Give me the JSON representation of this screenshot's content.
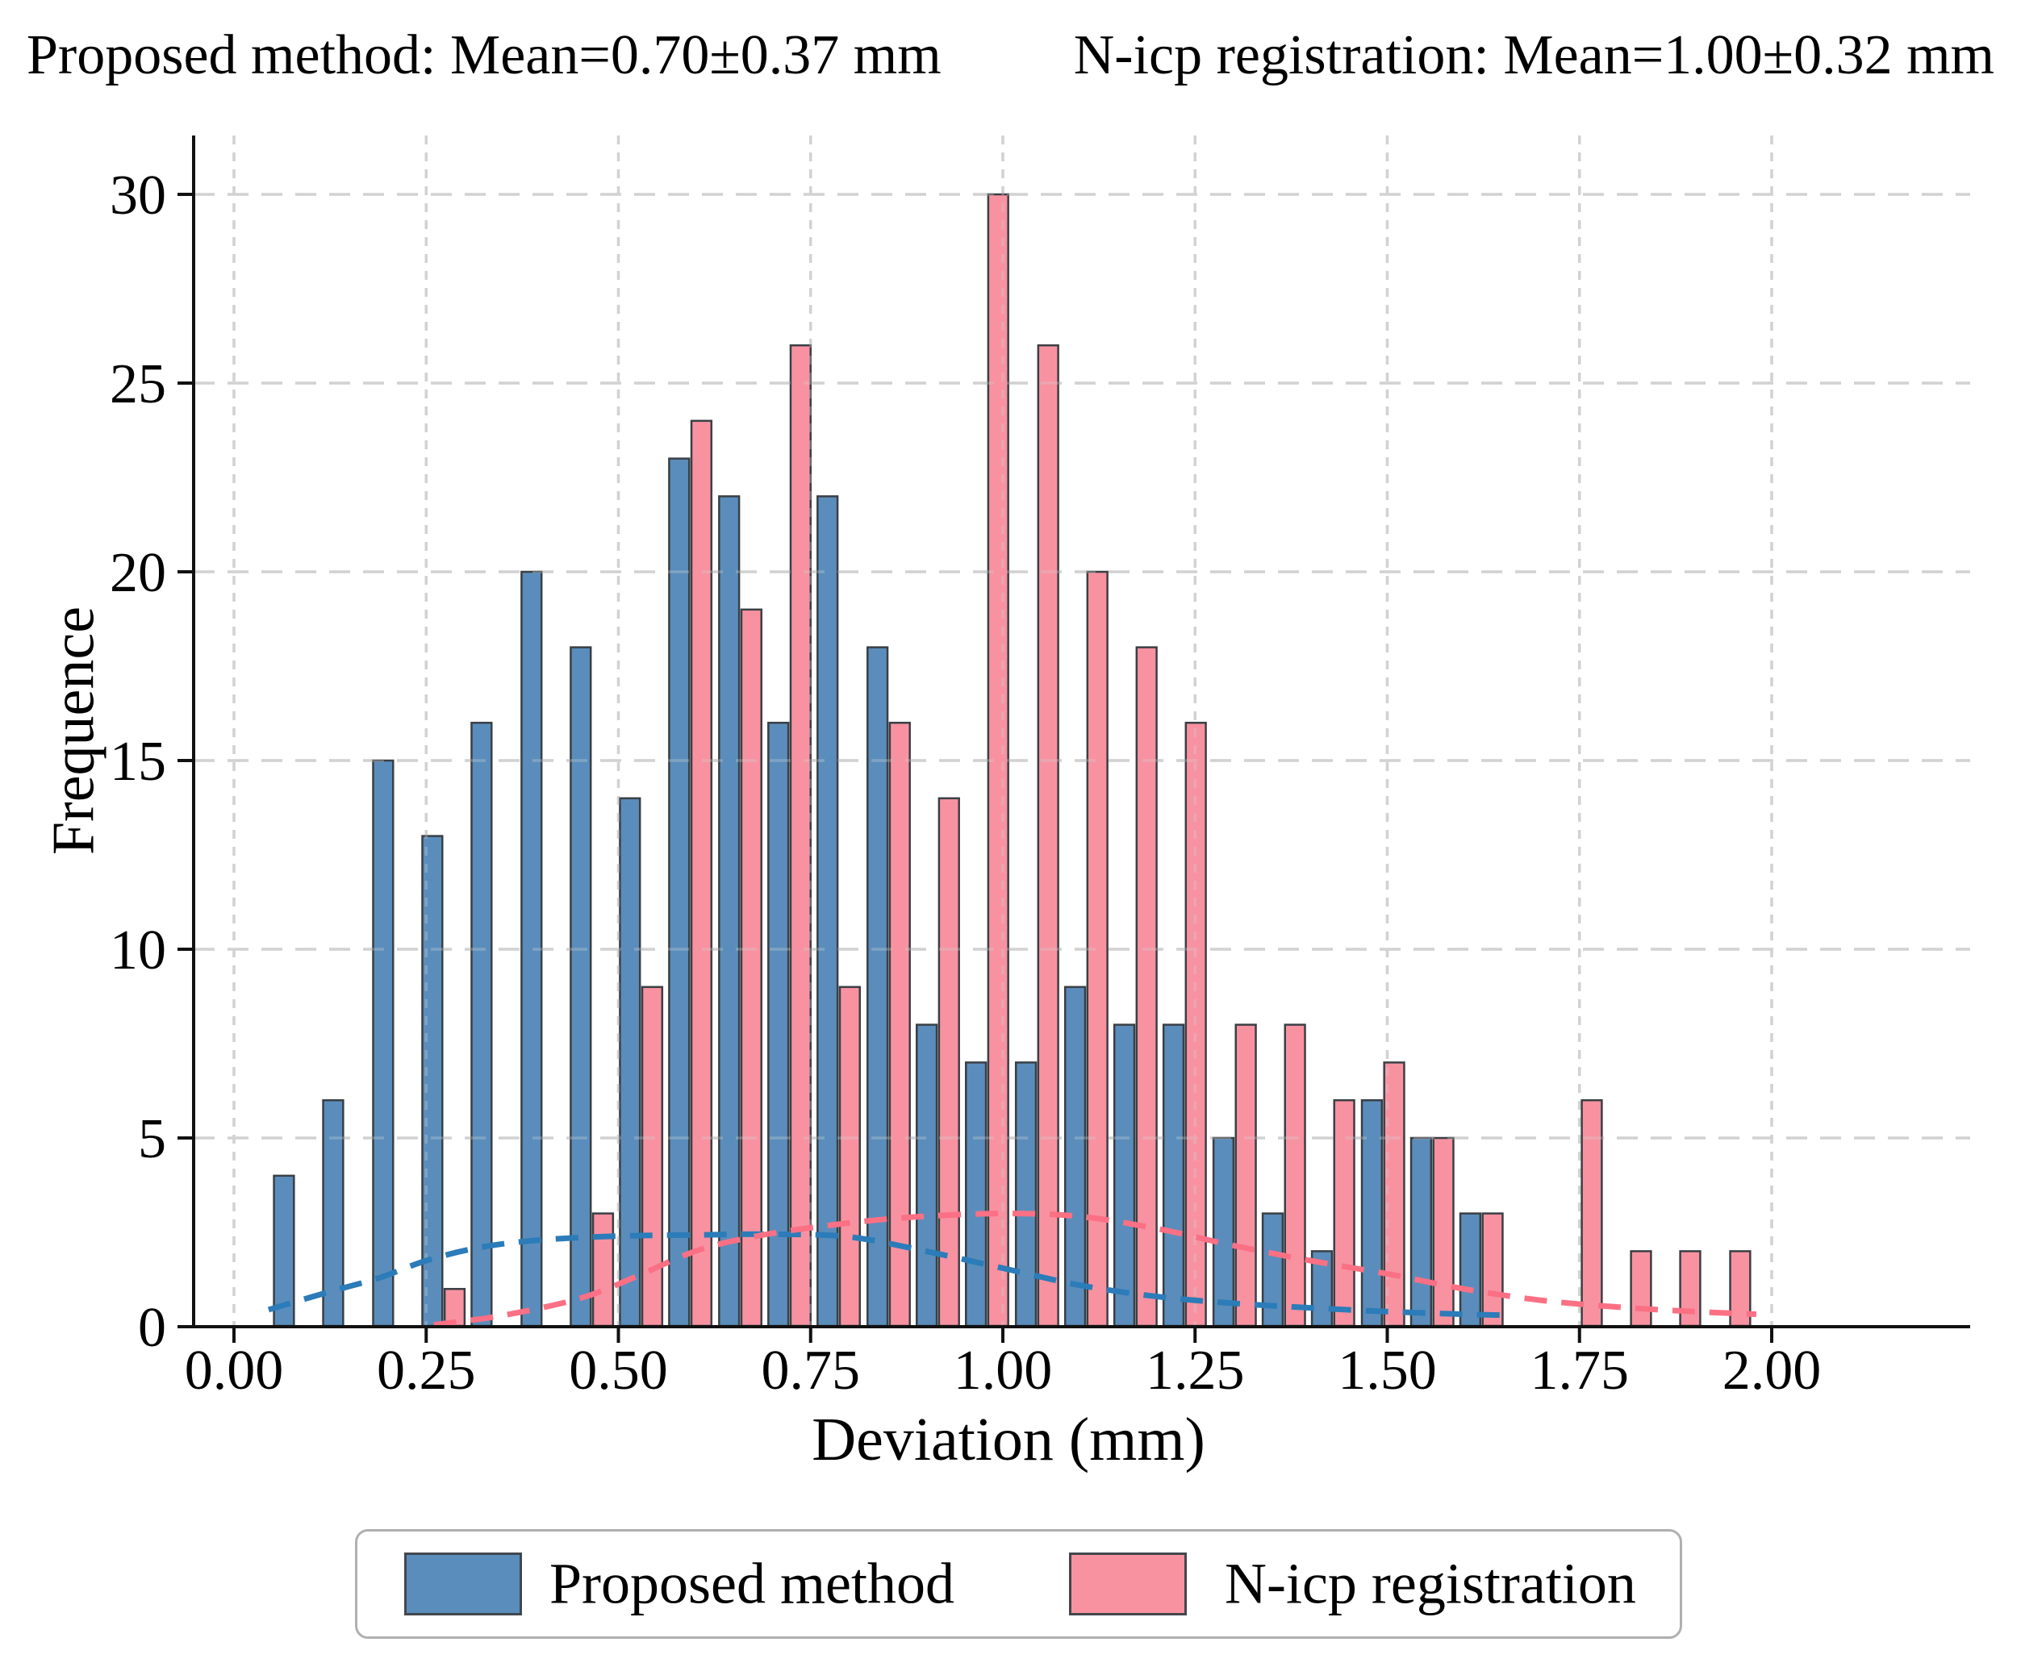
{
  "titles": {
    "left": "Proposed method: Mean=0.70±0.37 mm",
    "right": "N-icp registration: Mean=1.00±0.32 mm"
  },
  "chart_data": {
    "type": "bar",
    "subtype": "grouped-histogram-with-kde",
    "xlabel": "Deviation (mm)",
    "ylabel": "Frequence",
    "xlim": [
      -0.05,
      2.26
    ],
    "ylim": [
      0,
      31.6
    ],
    "x_ticks": [
      0.0,
      0.25,
      0.5,
      0.75,
      1.0,
      1.25,
      1.5,
      1.75,
      2.0
    ],
    "x_tick_labels": [
      "0.00",
      "0.25",
      "0.50",
      "0.75",
      "1.00",
      "1.25",
      "1.50",
      "1.75",
      "2.00"
    ],
    "y_ticks": [
      0,
      5,
      10,
      15,
      20,
      25,
      30
    ],
    "y_tick_labels": [
      "0",
      "5",
      "10",
      "15",
      "20",
      "25",
      "30"
    ],
    "grid": {
      "horizontal_style": "dashed",
      "vertical_style": "dotted",
      "color": "#d2d2d2",
      "legend_position": "bottom-center"
    },
    "bin_width_mm": 0.0643,
    "bar_width_mm": 0.026,
    "series": [
      {
        "name": "Proposed method",
        "fill": "#5a8dbc",
        "edge": "#3a3f44",
        "centers": [
          0.065,
          0.129,
          0.194,
          0.258,
          0.322,
          0.387,
          0.451,
          0.515,
          0.579,
          0.644,
          0.708,
          0.772,
          0.837,
          0.901,
          0.965,
          1.03,
          1.094,
          1.158,
          1.222,
          1.287,
          1.351,
          1.415,
          1.48,
          1.544,
          1.608,
          1.673,
          1.737,
          1.801,
          1.865,
          1.93
        ],
        "values": [
          4,
          6,
          15,
          13,
          16,
          20,
          18,
          14,
          23,
          22,
          16,
          22,
          18,
          8,
          7,
          7,
          9,
          8,
          8,
          5,
          3,
          2,
          6,
          5,
          3,
          0,
          0,
          0,
          0,
          0
        ]
      },
      {
        "name": "N-icp registration",
        "fill": "#f892a1",
        "edge": "#3a3f44",
        "centers": [
          0.094,
          0.158,
          0.223,
          0.287,
          0.351,
          0.416,
          0.48,
          0.544,
          0.608,
          0.673,
          0.737,
          0.801,
          0.866,
          0.93,
          0.994,
          1.059,
          1.123,
          1.187,
          1.251,
          1.316,
          1.38,
          1.444,
          1.509,
          1.573,
          1.637,
          1.702,
          1.766,
          1.83,
          1.894,
          1.959
        ],
        "values": [
          0,
          0,
          0,
          1,
          0,
          0,
          3,
          9,
          24,
          19,
          26,
          9,
          16,
          14,
          30,
          26,
          20,
          18,
          16,
          8,
          8,
          6,
          7,
          5,
          3,
          0,
          6,
          2,
          2,
          2
        ]
      }
    ],
    "kde_curves": [
      {
        "name": "Proposed method fit",
        "color": "#2b7cb8",
        "style": "dashed",
        "points": [
          [
            0.045,
            0.45
          ],
          [
            0.12,
            0.9
          ],
          [
            0.19,
            1.3
          ],
          [
            0.25,
            1.75
          ],
          [
            0.32,
            2.1
          ],
          [
            0.4,
            2.3
          ],
          [
            0.5,
            2.4
          ],
          [
            0.6,
            2.43
          ],
          [
            0.7,
            2.45
          ],
          [
            0.8,
            2.38
          ],
          [
            0.9,
            2.0
          ],
          [
            1.0,
            1.55
          ],
          [
            1.1,
            1.1
          ],
          [
            1.2,
            0.8
          ],
          [
            1.3,
            0.62
          ],
          [
            1.4,
            0.5
          ],
          [
            1.5,
            0.4
          ],
          [
            1.6,
            0.33
          ],
          [
            1.66,
            0.3
          ]
        ]
      },
      {
        "name": "N-icp registration fit",
        "color": "#fb7084",
        "style": "dashed",
        "points": [
          [
            0.26,
            0.05
          ],
          [
            0.35,
            0.3
          ],
          [
            0.45,
            0.75
          ],
          [
            0.52,
            1.3
          ],
          [
            0.6,
            2.0
          ],
          [
            0.68,
            2.4
          ],
          [
            0.78,
            2.7
          ],
          [
            0.88,
            2.9
          ],
          [
            1.0,
            3.0
          ],
          [
            1.1,
            2.92
          ],
          [
            1.2,
            2.6
          ],
          [
            1.3,
            2.15
          ],
          [
            1.4,
            1.75
          ],
          [
            1.5,
            1.4
          ],
          [
            1.6,
            1.0
          ],
          [
            1.7,
            0.7
          ],
          [
            1.8,
            0.52
          ],
          [
            1.9,
            0.4
          ],
          [
            1.98,
            0.33
          ]
        ]
      }
    ],
    "legend": {
      "items": [
        {
          "label": "Proposed method",
          "color": "#5a8dbc"
        },
        {
          "label": "N-icp registration",
          "color": "#f892a1"
        }
      ]
    }
  }
}
